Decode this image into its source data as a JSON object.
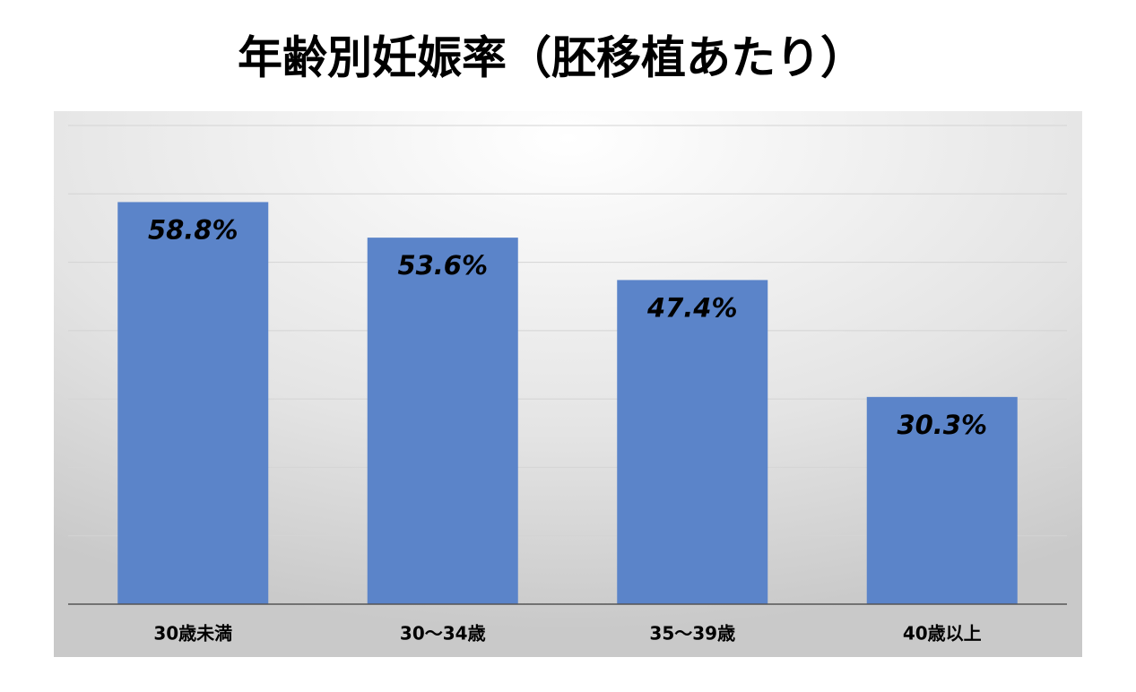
{
  "chart_data": {
    "type": "bar",
    "title": "年齢別妊娠率（胚移植あたり）",
    "categories": [
      "30歳未満",
      "30～34歳",
      "35～39歳",
      "40歳以上"
    ],
    "values": [
      58.8,
      53.6,
      47.4,
      30.3
    ],
    "value_labels": [
      "58.8%",
      "53.6%",
      "47.4%",
      "30.3%"
    ],
    "color": "#5b84c9",
    "ylim": [
      0,
      70
    ],
    "yticks": [
      0,
      10,
      20,
      30,
      40,
      50,
      60,
      70
    ],
    "grid": true
  }
}
